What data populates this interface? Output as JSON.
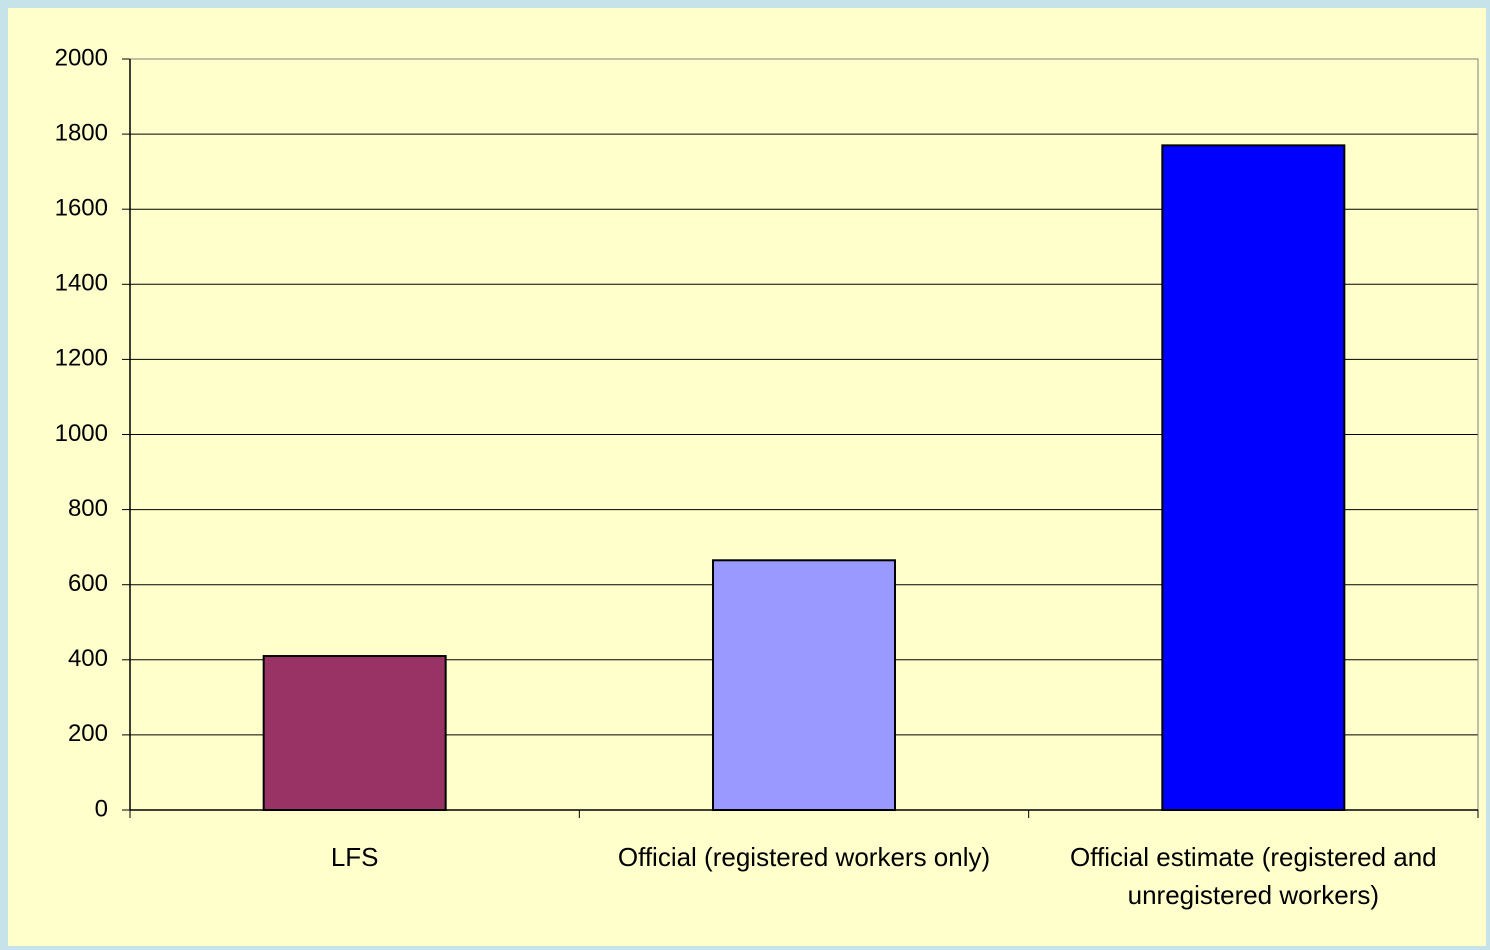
{
  "chart_data": {
    "type": "bar",
    "categories": [
      "LFS",
      "Official (registered workers only)",
      "Official estimate (registered and unregistered workers)"
    ],
    "values": [
      410,
      665,
      1770
    ],
    "colors": [
      "#993366",
      "#9999FF",
      "#0000FF"
    ],
    "ylim": [
      0,
      2000
    ],
    "yticks": [
      0,
      200,
      400,
      600,
      800,
      1000,
      1200,
      1400,
      1600,
      1800,
      2000
    ],
    "grid": true
  }
}
